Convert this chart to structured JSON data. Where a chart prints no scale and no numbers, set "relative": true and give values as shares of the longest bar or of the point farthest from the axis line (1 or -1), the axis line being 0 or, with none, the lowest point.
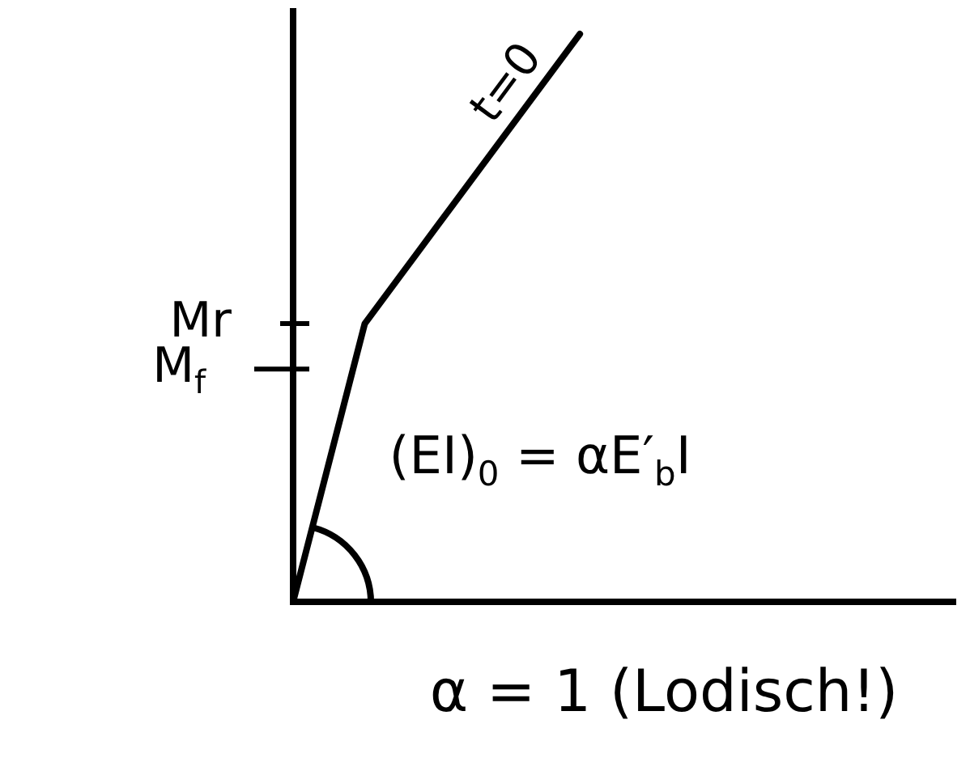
{
  "chart_data": {
    "type": "line",
    "relative": true,
    "categories": [
      null,
      null,
      null,
      null,
      null
    ],
    "series": [
      {
        "name": "t=0",
        "color": "#000000",
        "values": [
          0,
          0.49,
          0.66,
          0.83,
          1
        ]
      }
    ],
    "ref_lines": [
      {
        "axis": "y",
        "value": 0.49,
        "label": "Mr"
      },
      {
        "axis": "y",
        "value": 0.41,
        "label": "M$_{f}$"
      }
    ],
    "annotations": [
      "(EI)$_{0}$ = αE′$_{b}$I",
      "α = 1 (Lodisch!)"
    ]
  }
}
